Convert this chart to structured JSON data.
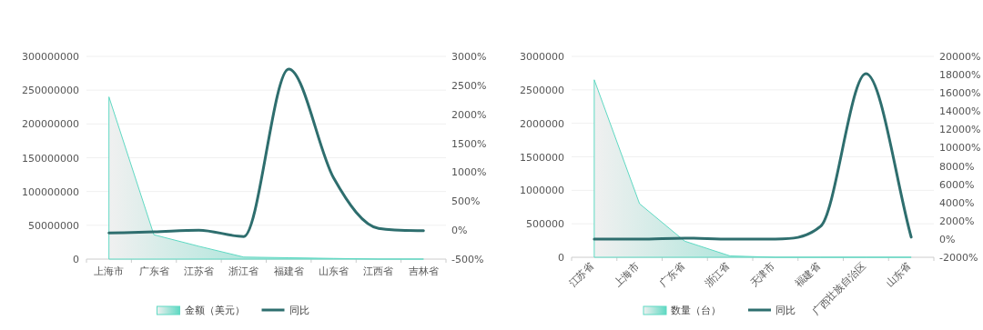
{
  "chart_data": [
    {
      "type": "area",
      "categories": [
        "上海市",
        "广东省",
        "江苏省",
        "浙江省",
        "福建省",
        "山东省",
        "江西省",
        "吉林省"
      ],
      "series": [
        {
          "name": "金额（美元）",
          "color": "#5fd9c3",
          "values": [
            240000000,
            36000000,
            19000000,
            3000000,
            2000000,
            1000000,
            0,
            0
          ]
        },
        {
          "name": "同比",
          "type": "line",
          "axis": "y2",
          "color": "#2e6e6e",
          "values": [
            -50,
            -30,
            0,
            -110,
            2780,
            900,
            30,
            -10
          ]
        }
      ],
      "ylim": [
        0,
        300000000
      ],
      "yticks": [
        0,
        50000000,
        100000000,
        150000000,
        200000000,
        250000000,
        300000000
      ],
      "y2lim": [
        -500,
        3000
      ],
      "y2ticks": [
        {
          "value": -500,
          "label": "-500%"
        },
        {
          "value": 0,
          "label": "0%"
        },
        {
          "value": 500,
          "label": "500%"
        },
        {
          "value": 1000,
          "label": "1000%"
        },
        {
          "value": 1500,
          "label": "1500%"
        },
        {
          "value": 2000,
          "label": "2000%"
        },
        {
          "value": 2500,
          "label": "2500%"
        },
        {
          "value": 3000,
          "label": "3000%"
        }
      ],
      "grid": "y",
      "legend": "bottom"
    },
    {
      "type": "area",
      "categories": [
        "江苏省",
        "上海市",
        "广东省",
        "浙江省",
        "天津市",
        "福建省",
        "广西壮族自治区",
        "山东省"
      ],
      "series": [
        {
          "name": "数量（台）",
          "color": "#5fd9c3",
          "values": [
            2650000,
            800000,
            240000,
            20000,
            0,
            0,
            0,
            0
          ]
        },
        {
          "name": "同比",
          "type": "line",
          "axis": "y2",
          "color": "#2e6e6e",
          "values": [
            0,
            0,
            100,
            0,
            0,
            1400,
            18100,
            200
          ]
        }
      ],
      "ylim": [
        0,
        3000000
      ],
      "yticks": [
        0,
        500000,
        1000000,
        1500000,
        2000000,
        2500000,
        3000000
      ],
      "y2lim": [
        -2000,
        20000
      ],
      "y2ticks": [
        {
          "value": -2000,
          "label": "-2000%"
        },
        {
          "value": 0,
          "label": "0%"
        },
        {
          "value": 2000,
          "label": "2000%"
        },
        {
          "value": 4000,
          "label": "4000%"
        },
        {
          "value": 6000,
          "label": "6000%"
        },
        {
          "value": 8000,
          "label": "8000%"
        },
        {
          "value": 10000,
          "label": "10000%"
        },
        {
          "value": 12000,
          "label": "12000%"
        },
        {
          "value": 14000,
          "label": "14000%"
        },
        {
          "value": 16000,
          "label": "16000%"
        },
        {
          "value": 18000,
          "label": "18000%"
        },
        {
          "value": 20000,
          "label": "20000%"
        }
      ],
      "grid": "y",
      "legend": "bottom"
    }
  ]
}
